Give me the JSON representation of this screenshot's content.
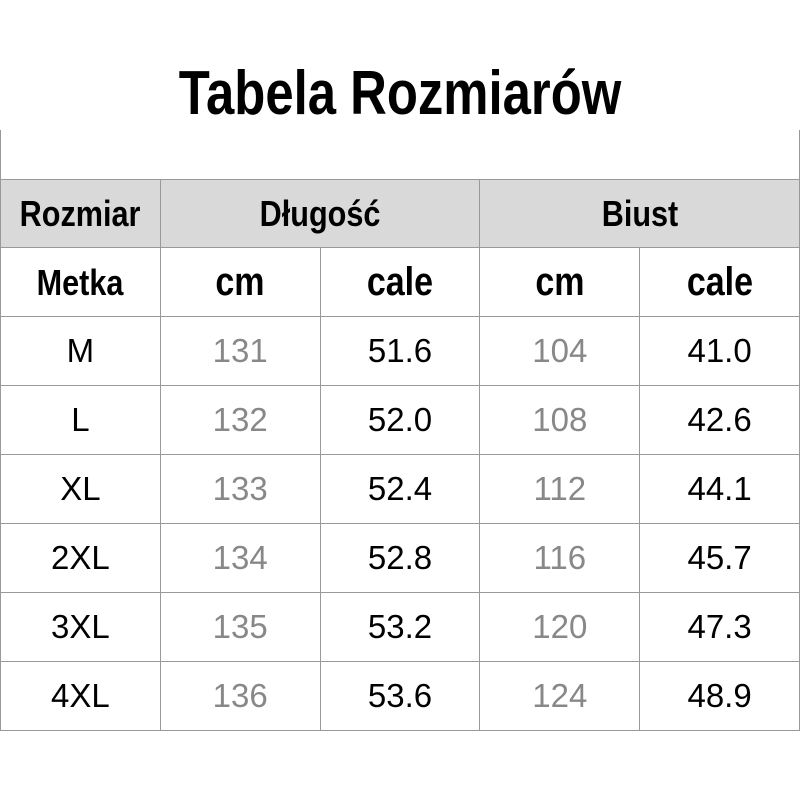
{
  "header": {
    "title": "Tabela Rozmiarów"
  },
  "table": {
    "group_row": [
      "Rozmiar",
      "Długość",
      "Biust"
    ],
    "unit_row": [
      "Metka",
      "cm",
      "cale",
      "cm",
      "cale"
    ],
    "rows": [
      [
        "M",
        "131",
        "51.6",
        "104",
        "41.0"
      ],
      [
        "L",
        "132",
        "52.0",
        "108",
        "42.6"
      ],
      [
        "XL",
        "133",
        "52.4",
        "112",
        "44.1"
      ],
      [
        "2XL",
        "134",
        "52.8",
        "116",
        "45.7"
      ],
      [
        "3XL",
        "135",
        "53.2",
        "120",
        "47.3"
      ],
      [
        "4XL",
        "136",
        "53.6",
        "124",
        "48.9"
      ]
    ]
  }
}
